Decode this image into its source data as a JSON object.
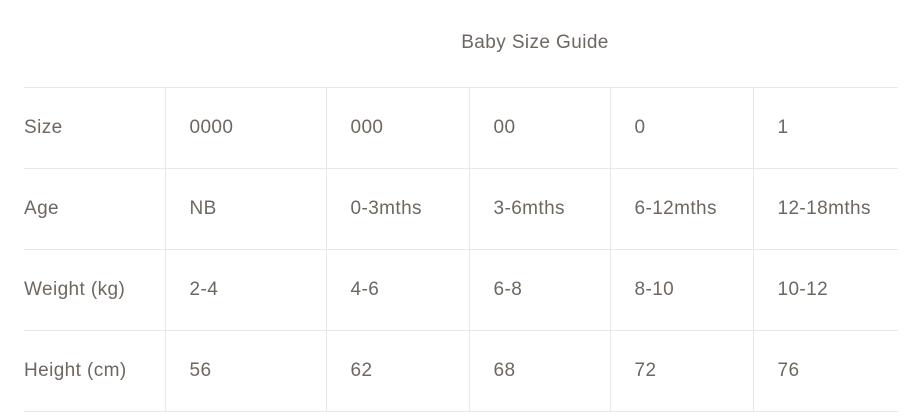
{
  "title": "Baby Size Guide",
  "colors": {
    "text": "#6e6760",
    "border": "#e8e8e8",
    "background": "#ffffff"
  },
  "table": {
    "rows": [
      {
        "label": "Size",
        "values": [
          "0000",
          "000",
          "00",
          "0",
          "1"
        ]
      },
      {
        "label": "Age",
        "values": [
          "NB",
          "0-3mths",
          "3-6mths",
          "6-12mths",
          "12-18mths"
        ]
      },
      {
        "label": "Weight (kg)",
        "values": [
          "2-4",
          "4-6",
          "6-8",
          "8-10",
          "10-12"
        ]
      },
      {
        "label": "Height (cm)",
        "values": [
          "56",
          "62",
          "68",
          "72",
          "76"
        ]
      }
    ]
  }
}
